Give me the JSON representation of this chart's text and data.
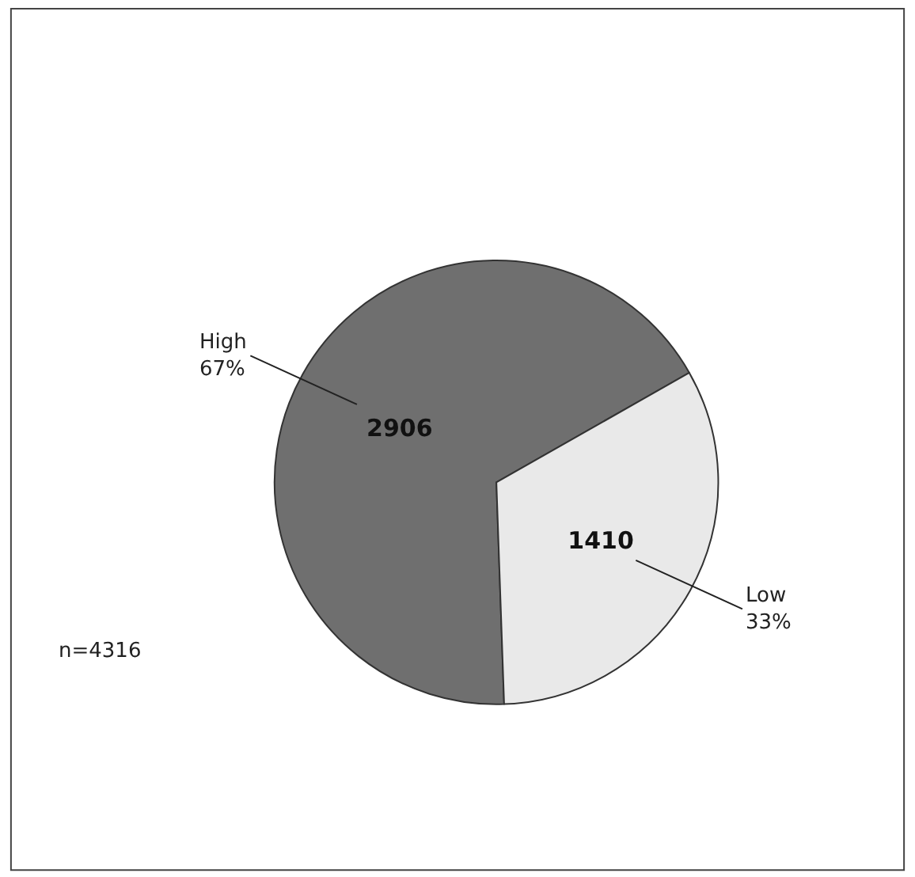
{
  "chart_data": {
    "type": "pie",
    "categories": [
      "High\n67%",
      "Low\n33%"
    ],
    "values": [
      2906,
      1410
    ],
    "colors": [
      "#6f6f6f",
      "#e9e9e9"
    ],
    "data_labels": true,
    "annotations": [
      "n=4316"
    ]
  }
}
